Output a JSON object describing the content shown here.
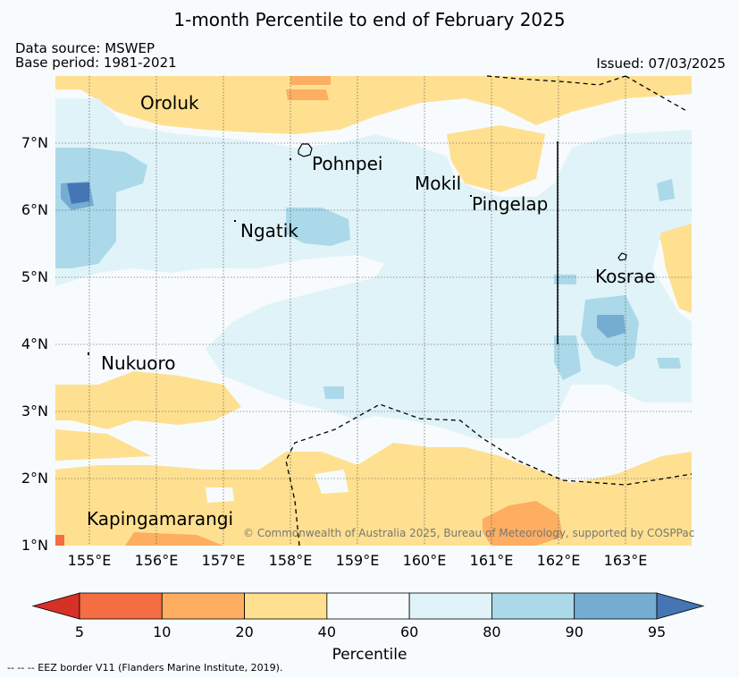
{
  "title": "1-month Percentile to end of February 2025",
  "source": {
    "data_source": "Data source: MSWEP",
    "base_period": "Base period: 1981-2021"
  },
  "issued": "Issued: 07/03/2025",
  "copyright": "© Commonwealth of Australia 2025, Bureau of Meteorology, supported by COSPPac",
  "eez_note": "--  --  -- EEZ border V11 (Flanders Marine Institute, 2019).",
  "map": {
    "lon_range": [
      154.5,
      164
    ],
    "lat_range": [
      1,
      8
    ],
    "lat_ticks": [
      "1°N",
      "2°N",
      "3°N",
      "4°N",
      "5°N",
      "6°N",
      "7°N"
    ],
    "lon_ticks": [
      "155°E",
      "156°E",
      "157°E",
      "158°E",
      "159°E",
      "160°E",
      "161°E",
      "162°E",
      "163°E"
    ],
    "places": [
      {
        "name": "Oroluk",
        "lon": 155.8,
        "lat": 7.6
      },
      {
        "name": "Pohnpei",
        "lon": 158.2,
        "lat": 6.9
      },
      {
        "name": "Mokil",
        "lon": 159.7,
        "lat": 6.3
      },
      {
        "name": "Pingelap",
        "lon": 160.7,
        "lat": 6.0
      },
      {
        "name": "Ngatik",
        "lon": 157.3,
        "lat": 5.6
      },
      {
        "name": "Kosrae",
        "lon": 162.6,
        "lat": 4.9
      },
      {
        "name": "Nukuoro",
        "lon": 155.0,
        "lat": 3.8
      },
      {
        "name": "Kapingamarangi",
        "lon": 154.95,
        "lat": 1.25
      }
    ]
  },
  "colorbar": {
    "label": "Percentile",
    "ticks": [
      "5",
      "10",
      "20",
      "40",
      "60",
      "80",
      "90",
      "95"
    ],
    "colors": [
      "#d73027",
      "#f46d43",
      "#fdae61",
      "#fee090",
      "#f7fbfd",
      "#e0f3f8",
      "#abd9e9",
      "#74add1",
      "#4575b4"
    ]
  }
}
